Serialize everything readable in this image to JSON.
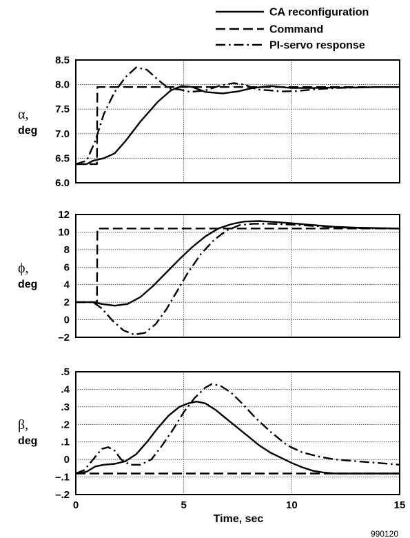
{
  "legend": [
    {
      "label": "CA reconfiguration",
      "style": "solid"
    },
    {
      "label": "Command",
      "style": "dashed"
    },
    {
      "label": "PI-servo response",
      "style": "dashdot"
    }
  ],
  "xlabel": "Time, sec",
  "figure_number": "990120",
  "chart_data": [
    {
      "type": "line",
      "ylabel_symbol": "α,",
      "ylabel_unit": "deg",
      "xlim": [
        0,
        15
      ],
      "ylim": [
        6.0,
        8.5
      ],
      "xticks": [
        0,
        5,
        10,
        15
      ],
      "xtick_labels": [
        "0",
        "5",
        "10",
        "15"
      ],
      "yticks": [
        6.0,
        6.5,
        7.0,
        7.5,
        8.0,
        8.5
      ],
      "ytick_labels": [
        "6.0",
        "6.5",
        "7.0",
        "7.5",
        "8.0",
        "8.5"
      ],
      "ygrid": [
        6.5,
        7.0,
        7.5,
        8.0,
        8.5
      ],
      "series": [
        {
          "name": "CA reconfiguration",
          "style": "solid",
          "x": [
            0,
            0.5,
            0.8,
            1.3,
            1.8,
            2.3,
            3.0,
            3.8,
            4.4,
            4.9,
            5.4,
            6.0,
            6.8,
            7.5,
            8.2,
            9.0,
            10.0,
            11.0,
            12.0,
            13.0,
            14.0,
            15.0
          ],
          "y": [
            6.38,
            6.38,
            6.45,
            6.5,
            6.6,
            6.85,
            7.25,
            7.65,
            7.88,
            7.97,
            7.95,
            7.85,
            7.82,
            7.86,
            7.93,
            7.97,
            7.93,
            7.93,
            7.94,
            7.94,
            7.95,
            7.95
          ]
        },
        {
          "name": "Command",
          "style": "dashed",
          "x": [
            0,
            0.98,
            1.0,
            15
          ],
          "y": [
            6.38,
            6.38,
            7.95,
            7.95
          ]
        },
        {
          "name": "PI-servo response",
          "style": "dashdot",
          "x": [
            0,
            0.5,
            0.9,
            1.3,
            1.8,
            2.3,
            2.8,
            3.3,
            3.8,
            4.3,
            4.8,
            5.3,
            6.0,
            6.7,
            7.3,
            7.8,
            8.4,
            9.0,
            9.6,
            10.3,
            11.0,
            12.0,
            13.0,
            14.0,
            15.0
          ],
          "y": [
            6.38,
            6.45,
            6.85,
            7.4,
            7.85,
            8.15,
            8.35,
            8.3,
            8.1,
            7.92,
            7.9,
            7.85,
            7.88,
            7.98,
            8.03,
            8.0,
            7.9,
            7.88,
            7.86,
            7.87,
            7.9,
            7.93,
            7.94,
            7.95,
            7.95
          ]
        }
      ]
    },
    {
      "type": "line",
      "ylabel_symbol": "ϕ,",
      "ylabel_unit": "deg",
      "xlim": [
        0,
        15
      ],
      "ylim": [
        -2,
        12
      ],
      "xticks": [
        0,
        5,
        10,
        15
      ],
      "xtick_labels": [
        "0",
        "5",
        "10",
        "15"
      ],
      "yticks": [
        -2,
        0,
        2,
        4,
        6,
        8,
        10,
        12
      ],
      "ytick_labels": [
        "–2",
        "0",
        "2",
        "4",
        "6",
        "8",
        "10",
        "12"
      ],
      "ygrid": [
        0,
        2,
        4,
        6,
        8,
        10,
        12
      ],
      "series": [
        {
          "name": "CA reconfiguration",
          "style": "solid",
          "x": [
            0,
            0.8,
            1.2,
            1.8,
            2.4,
            3.0,
            3.6,
            4.2,
            4.8,
            5.4,
            6.0,
            6.6,
            7.2,
            7.8,
            8.5,
            9.2,
            10.0,
            11.0,
            12.0,
            13.0,
            14.0,
            15.0
          ],
          "y": [
            2,
            2,
            1.8,
            1.6,
            1.8,
            2.6,
            3.9,
            5.4,
            6.9,
            8.3,
            9.5,
            10.4,
            10.9,
            11.2,
            11.25,
            11.15,
            11.0,
            10.8,
            10.6,
            10.5,
            10.45,
            10.4
          ]
        },
        {
          "name": "Command",
          "style": "dashed",
          "x": [
            0,
            0.98,
            1.0,
            15
          ],
          "y": [
            2,
            2,
            10.4,
            10.4
          ]
        },
        {
          "name": "PI-servo response",
          "style": "dashdot",
          "x": [
            0,
            0.8,
            1.2,
            1.7,
            2.2,
            2.7,
            3.2,
            3.7,
            4.2,
            4.7,
            5.2,
            5.8,
            6.4,
            7.0,
            7.6,
            8.2,
            9.0,
            10.0,
            11.0,
            12.0,
            13.0,
            14.0,
            15.0
          ],
          "y": [
            2,
            2,
            1.3,
            -0.1,
            -1.2,
            -1.7,
            -1.5,
            -0.5,
            1.2,
            3.3,
            5.4,
            7.5,
            9.1,
            10.2,
            10.8,
            10.95,
            10.95,
            10.85,
            10.7,
            10.55,
            10.45,
            10.4,
            10.4
          ]
        }
      ]
    },
    {
      "type": "line",
      "ylabel_symbol": "β,",
      "ylabel_unit": "deg",
      "xlim": [
        0,
        15
      ],
      "ylim": [
        -0.2,
        0.5
      ],
      "xticks": [
        0,
        5,
        10,
        15
      ],
      "xtick_labels": [
        "0",
        "5",
        "10",
        "15"
      ],
      "yticks": [
        -0.2,
        -0.1,
        0,
        0.1,
        0.2,
        0.3,
        0.4,
        0.5
      ],
      "ytick_labels": [
        "–.2",
        "–.1",
        "0",
        ".1",
        ".2",
        ".3",
        ".4",
        ".5"
      ],
      "ygrid": [
        -0.1,
        0,
        0.1,
        0.2,
        0.3,
        0.4,
        0.5
      ],
      "series": [
        {
          "name": "CA reconfiguration",
          "style": "solid",
          "x": [
            0,
            0.5,
            0.9,
            1.3,
            1.8,
            2.3,
            2.8,
            3.3,
            3.8,
            4.3,
            4.8,
            5.2,
            5.6,
            6.0,
            6.5,
            7.0,
            7.5,
            8.0,
            8.5,
            9.0,
            9.5,
            10.0,
            10.5,
            11.0,
            11.5,
            12.0,
            13.0,
            14.0,
            15.0
          ],
          "y": [
            -0.08,
            -0.07,
            -0.04,
            -0.03,
            -0.025,
            -0.01,
            0.03,
            0.1,
            0.18,
            0.25,
            0.3,
            0.32,
            0.33,
            0.32,
            0.28,
            0.23,
            0.18,
            0.13,
            0.08,
            0.04,
            0.01,
            -0.02,
            -0.045,
            -0.065,
            -0.075,
            -0.08,
            -0.08,
            -0.08,
            -0.08
          ]
        },
        {
          "name": "Command",
          "style": "dashed",
          "x": [
            0,
            15
          ],
          "y": [
            -0.08,
            -0.08
          ]
        },
        {
          "name": "PI-servo response",
          "style": "dashdot",
          "x": [
            0,
            0.4,
            0.8,
            1.2,
            1.5,
            1.8,
            2.1,
            2.5,
            3.0,
            3.5,
            4.0,
            4.5,
            5.0,
            5.5,
            6.0,
            6.3,
            6.7,
            7.2,
            7.7,
            8.3,
            9.0,
            9.8,
            10.5,
            11.3,
            12.0,
            13.0,
            14.0,
            15.0
          ],
          "y": [
            -0.08,
            -0.06,
            0.0,
            0.06,
            0.07,
            0.05,
            0.0,
            -0.03,
            -0.03,
            0.0,
            0.08,
            0.17,
            0.27,
            0.35,
            0.41,
            0.43,
            0.42,
            0.38,
            0.32,
            0.24,
            0.16,
            0.08,
            0.04,
            0.015,
            0.0,
            -0.01,
            -0.02,
            -0.03
          ]
        }
      ]
    }
  ]
}
